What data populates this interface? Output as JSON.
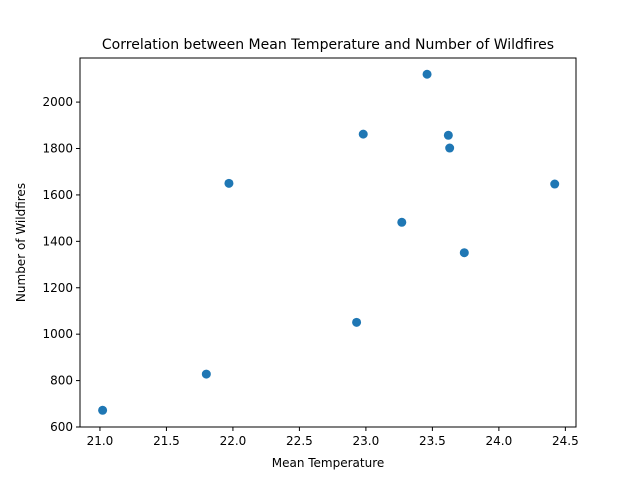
{
  "chart_data": {
    "type": "scatter",
    "title": "Correlation between Mean Temperature and Number of Wildfires",
    "xlabel": "Mean Temperature",
    "ylabel": "Number of Wildfires",
    "xlim": [
      20.85,
      24.58
    ],
    "ylim": [
      600,
      2190
    ],
    "xticks": [
      21.0,
      21.5,
      22.0,
      22.5,
      23.0,
      23.5,
      24.0,
      24.5
    ],
    "xtick_labels": [
      "21.0",
      "21.5",
      "22.0",
      "22.5",
      "23.0",
      "23.5",
      "24.0",
      "24.5"
    ],
    "yticks": [
      600,
      800,
      1000,
      1200,
      1400,
      1600,
      1800,
      2000
    ],
    "ytick_labels": [
      "600",
      "800",
      "1000",
      "1200",
      "1400",
      "1600",
      "1800",
      "2000"
    ],
    "grid": false,
    "marker_color": "#1f77b4",
    "points": [
      {
        "x": 21.02,
        "y": 672
      },
      {
        "x": 21.8,
        "y": 828
      },
      {
        "x": 21.97,
        "y": 1650
      },
      {
        "x": 22.93,
        "y": 1051
      },
      {
        "x": 22.98,
        "y": 1862
      },
      {
        "x": 23.27,
        "y": 1482
      },
      {
        "x": 23.46,
        "y": 2120
      },
      {
        "x": 23.62,
        "y": 1857
      },
      {
        "x": 23.63,
        "y": 1802
      },
      {
        "x": 23.74,
        "y": 1351
      },
      {
        "x": 24.42,
        "y": 1647
      }
    ]
  }
}
